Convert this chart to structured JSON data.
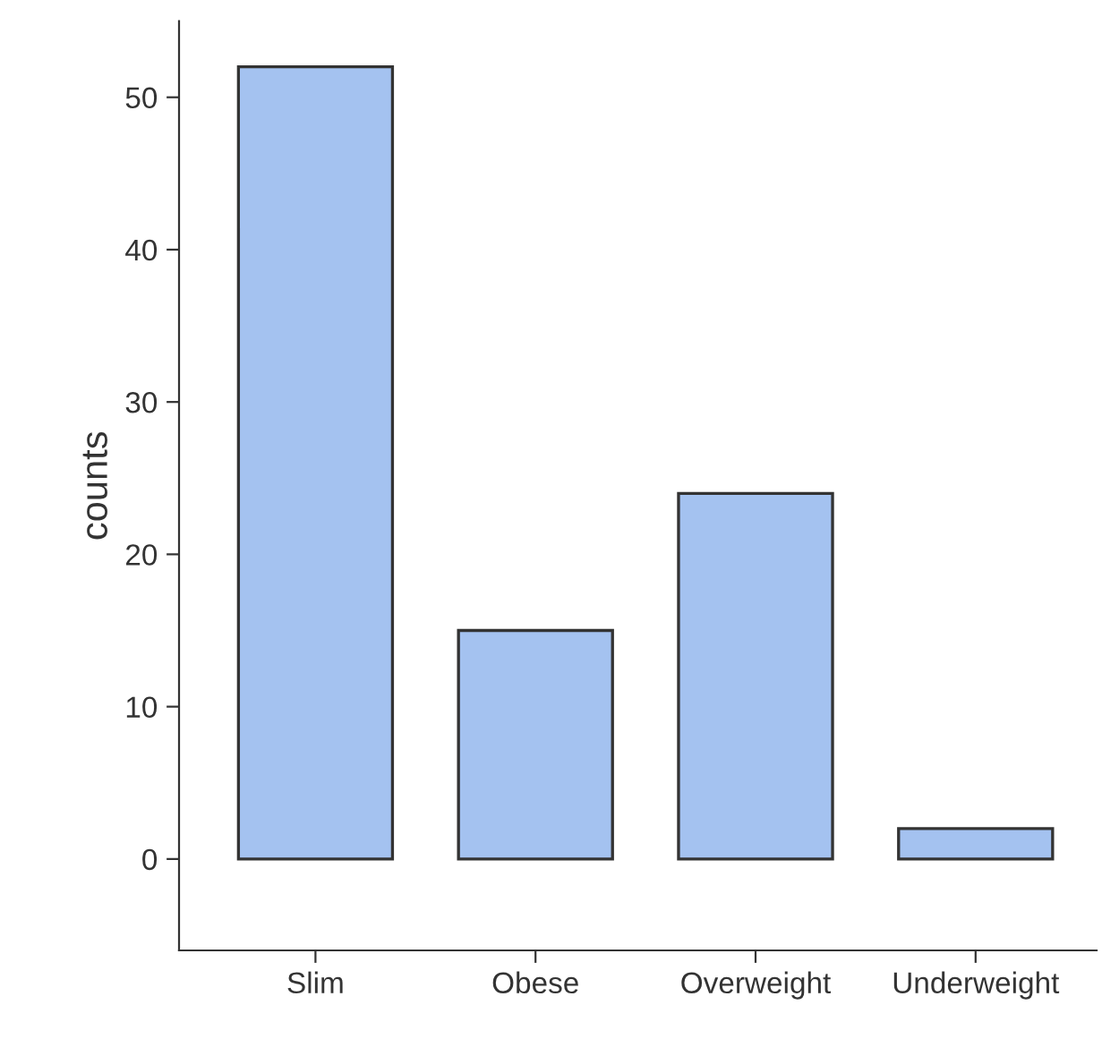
{
  "chart_data": {
    "type": "bar",
    "ylabel": "counts",
    "categories": [
      "Slim",
      "Obese",
      "Overweight",
      "Underweight"
    ],
    "values": [
      52,
      15,
      24,
      2
    ],
    "color": "#a4c2f0",
    "ylim": [
      -6,
      55
    ],
    "yticks": [
      0,
      10,
      20,
      30,
      40,
      50
    ],
    "grid": false
  }
}
